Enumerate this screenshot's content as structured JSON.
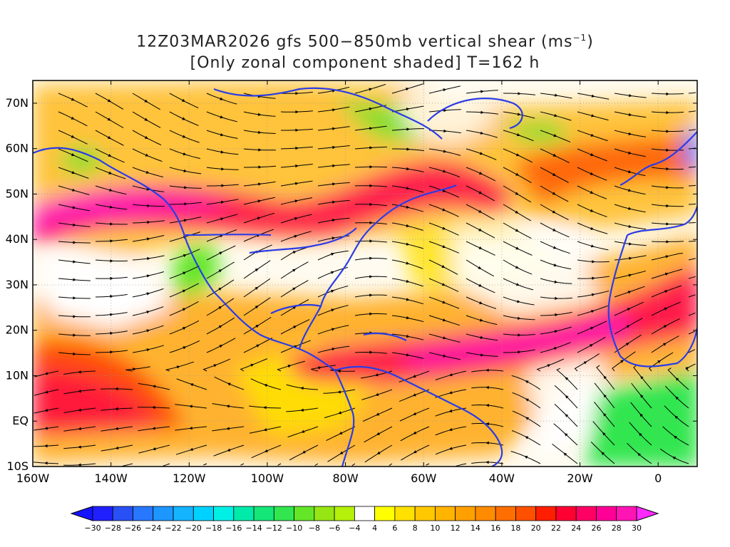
{
  "title": {
    "line1_prefix": "12Z03MAR2026 gfs 500−850mb vertical shear (ms",
    "line1_sup": "−1",
    "line1_suffix": ")",
    "line2": "[Only zonal component shaded] T=162 h"
  },
  "map": {
    "lon_labels": [
      "160W",
      "140W",
      "120W",
      "100W",
      "80W",
      "60W",
      "40W",
      "20W",
      "0"
    ],
    "lat_labels": [
      "70N",
      "60N",
      "50N",
      "40N",
      "30N",
      "20N",
      "10N",
      "EQ",
      "10S"
    ],
    "lon_range": [
      -160,
      10
    ],
    "lat_range": [
      -10,
      75
    ]
  },
  "colorbar": {
    "ticks": [
      "−30",
      "−28",
      "−26",
      "−24",
      "−22",
      "−20",
      "−18",
      "−16",
      "−14",
      "−12",
      "−10",
      "−8",
      "−6",
      "−4",
      "4",
      "6",
      "8",
      "10",
      "12",
      "14",
      "16",
      "18",
      "20",
      "22",
      "24",
      "26",
      "28",
      "30"
    ],
    "colors": [
      "#2020ff",
      "#2850f5",
      "#2878ff",
      "#1e96ff",
      "#14b4ff",
      "#00d2ff",
      "#00f0e6",
      "#00ebaa",
      "#14e678",
      "#32e650",
      "#64e628",
      "#96e614",
      "#b4f00a",
      "#ffffff",
      "#ffff00",
      "#ffe100",
      "#ffc800",
      "#ffb400",
      "#ffa000",
      "#ff8c00",
      "#ff6e00",
      "#ff5000",
      "#ff1e00",
      "#ff0032",
      "#ff0064",
      "#ff0096",
      "#ff14b4"
    ],
    "lower_arrow_color": "#1414ff",
    "upper_arrow_color": "#ff28ff"
  }
}
